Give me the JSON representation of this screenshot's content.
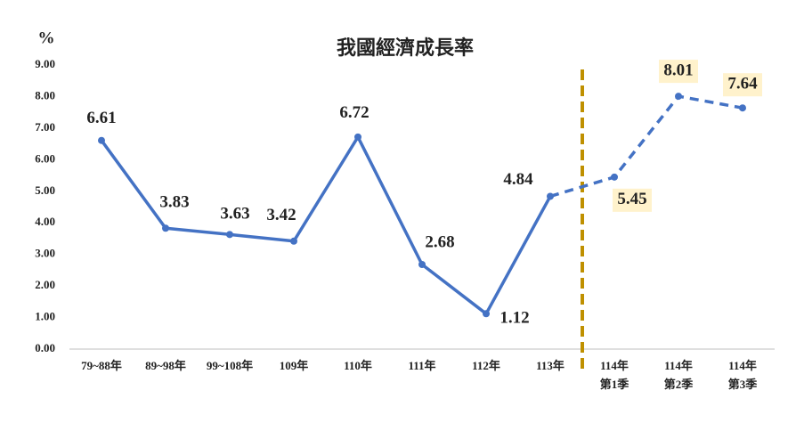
{
  "chart_data": {
    "type": "line",
    "title": "我國經濟成長率",
    "y_unit": "%",
    "categories": [
      "79~88年",
      "89~98年",
      "99~108年",
      "109年",
      "110年",
      "111年",
      "112年",
      "113年",
      "114年第1季",
      "114年第2季",
      "114年第3季"
    ],
    "series": [
      {
        "color": "#4472c4",
        "values": [
          6.61,
          3.83,
          3.63,
          3.42,
          6.72,
          2.68,
          1.12,
          4.84,
          5.45,
          8.01,
          7.64
        ]
      }
    ],
    "dash_start": 7,
    "divider_after": 7,
    "divider_color": "#bf9000",
    "highlight_from": 8,
    "highlight_color": "#fff2cc",
    "ylim": [
      0,
      9
    ],
    "yticks": [
      {
        "value": 0,
        "label": "0.00"
      },
      {
        "value": 1,
        "label": "1.00"
      },
      {
        "value": 2,
        "label": "2.00"
      },
      {
        "value": 3,
        "label": "3.00"
      },
      {
        "value": 4,
        "label": "4.00"
      },
      {
        "value": 5,
        "label": "5.00"
      },
      {
        "value": 6,
        "label": "6.00"
      },
      {
        "value": 7,
        "label": "7.00"
      },
      {
        "value": 8,
        "label": "8.00"
      },
      {
        "value": 9,
        "label": "9.00"
      }
    ],
    "grid": false
  }
}
